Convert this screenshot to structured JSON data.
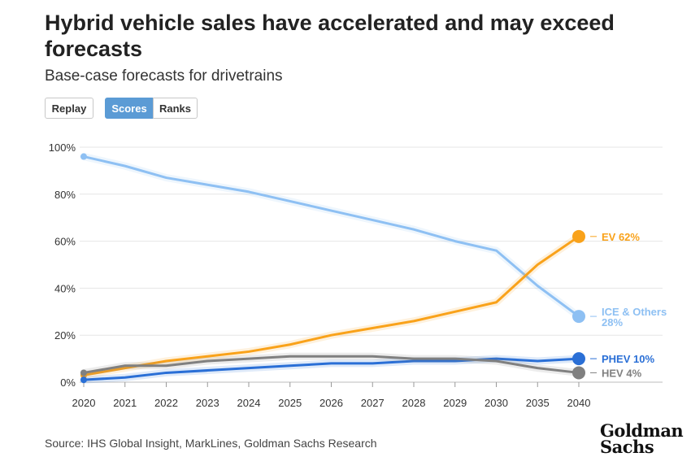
{
  "header": {
    "title": "Hybrid vehicle sales have accelerated and may exceed forecasts",
    "subtitle": "Base-case forecasts for drivetrains"
  },
  "controls": {
    "replay_label": "Replay",
    "scores_label": "Scores",
    "ranks_label": "Ranks"
  },
  "footer": {
    "source": "Source: IHS Global Insight, MarkLines, Goldman Sachs Research",
    "logo_line1": "Goldman",
    "logo_line2": "Sachs"
  },
  "chart_data": {
    "type": "line",
    "categories": [
      "2020",
      "2021",
      "2022",
      "2023",
      "2024",
      "2025",
      "2026",
      "2027",
      "2028",
      "2029",
      "2030",
      "2035",
      "2040"
    ],
    "ylim": [
      0,
      100
    ],
    "y_ticks": [
      "0%",
      "20%",
      "40%",
      "60%",
      "80%",
      "100%"
    ],
    "grid": true,
    "series": [
      {
        "name": "ICE & Others",
        "end_label_line1": "ICE & Others",
        "end_label_line2": "28%",
        "color": "#8ec0f3",
        "values": [
          96,
          92,
          87,
          84,
          81,
          77,
          73,
          69,
          65,
          60,
          56,
          41,
          28
        ]
      },
      {
        "name": "EV",
        "end_label_line1": "EV 62%",
        "end_label_line2": "",
        "color": "#f9a21a",
        "values": [
          3,
          6,
          9,
          11,
          13,
          16,
          20,
          23,
          26,
          30,
          34,
          50,
          62
        ]
      },
      {
        "name": "PHEV",
        "end_label_line1": "PHEV 10%",
        "end_label_line2": "",
        "color": "#2a6fd6",
        "values": [
          1,
          2,
          4,
          5,
          6,
          7,
          8,
          8,
          9,
          9,
          10,
          9,
          10
        ]
      },
      {
        "name": "HEV",
        "end_label_line1": "HEV 4%",
        "end_label_line2": "",
        "color": "#808080",
        "values": [
          4,
          7,
          7,
          9,
          10,
          11,
          11,
          11,
          10,
          10,
          9,
          6,
          4
        ]
      }
    ]
  }
}
